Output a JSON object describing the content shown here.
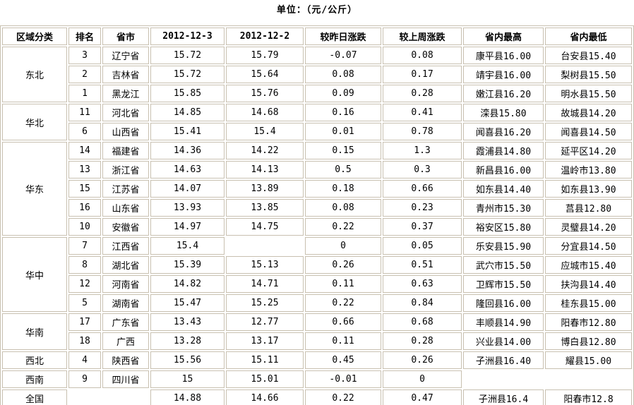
{
  "title": "单位：（元/公斤）",
  "chart_data": {
    "type": "table",
    "title": "单位：（元/公斤）",
    "unit": "元/公斤",
    "columns": [
      "区域分类",
      "排名",
      "省市",
      "2012-12-3",
      "2012-12-2",
      "较昨日涨跌",
      "较上周涨跌",
      "省内最高",
      "省内最低"
    ],
    "rows": [
      [
        "东北",
        "3",
        "辽宁省",
        "15.72",
        "15.79",
        "-0.07",
        "0.08",
        "康平县16.00",
        "台安县15.40"
      ],
      [
        "东北",
        "2",
        "吉林省",
        "15.72",
        "15.64",
        "0.08",
        "0.17",
        "靖宇县16.00",
        "梨树县15.50"
      ],
      [
        "东北",
        "1",
        "黑龙江",
        "15.85",
        "15.76",
        "0.09",
        "0.28",
        "嫩江县16.20",
        "明水县15.50"
      ],
      [
        "华北",
        "11",
        "河北省",
        "14.85",
        "14.68",
        "0.16",
        "0.41",
        "滦县15.80",
        "故城县14.20"
      ],
      [
        "华北",
        "6",
        "山西省",
        "15.41",
        "15.4",
        "0.01",
        "0.78",
        "闻喜县16.20",
        "闻喜县14.50"
      ],
      [
        "华东",
        "14",
        "福建省",
        "14.36",
        "14.22",
        "0.15",
        "1.3",
        "霞浦县14.80",
        "延平区14.20"
      ],
      [
        "华东",
        "13",
        "浙江省",
        "14.63",
        "14.13",
        "0.5",
        "0.3",
        "新昌县16.00",
        "温岭市13.80"
      ],
      [
        "华东",
        "15",
        "江苏省",
        "14.07",
        "13.89",
        "0.18",
        "0.66",
        "如东县14.40",
        "如东县13.90"
      ],
      [
        "华东",
        "16",
        "山东省",
        "13.93",
        "13.85",
        "0.08",
        "0.23",
        "青州市15.30",
        "莒县12.80"
      ],
      [
        "华东",
        "10",
        "安徽省",
        "14.97",
        "14.75",
        "0.22",
        "0.37",
        "裕安区15.80",
        "灵璧县14.20"
      ],
      [
        "华中",
        "7",
        "江西省",
        "15.4",
        "",
        "0",
        "0.05",
        "乐安县15.90",
        "分宜县14.50"
      ],
      [
        "华中",
        "8",
        "湖北省",
        "15.39",
        "15.13",
        "0.26",
        "0.51",
        "武穴市15.50",
        "应城市15.40"
      ],
      [
        "华中",
        "12",
        "河南省",
        "14.82",
        "14.71",
        "0.11",
        "0.63",
        "卫辉市15.50",
        "扶沟县14.40"
      ],
      [
        "华中",
        "5",
        "湖南省",
        "15.47",
        "15.25",
        "0.22",
        "0.84",
        "隆回县16.00",
        "桂东县15.00"
      ],
      [
        "华南",
        "17",
        "广东省",
        "13.43",
        "12.77",
        "0.66",
        "0.68",
        "丰顺县14.90",
        "阳春市12.80"
      ],
      [
        "华南",
        "18",
        "广西",
        "13.28",
        "13.17",
        "0.11",
        "0.28",
        "兴业县14.00",
        "博白县12.80"
      ],
      [
        "西北",
        "4",
        "陕西省",
        "15.56",
        "15.11",
        "0.45",
        "0.26",
        "子洲县16.40",
        "耀县15.00"
      ],
      [
        "西南",
        "9",
        "四川省",
        "15",
        "15.01",
        "-0.01",
        "0",
        "",
        ""
      ],
      [
        "全国",
        "",
        "",
        "14.88",
        "14.66",
        "0.22",
        "0.47",
        "子洲县16.4",
        "阳春市12.8"
      ]
    ]
  },
  "colors": {
    "border": "#C8C0B0",
    "text": "#000000",
    "background": "#FFFFFF"
  }
}
